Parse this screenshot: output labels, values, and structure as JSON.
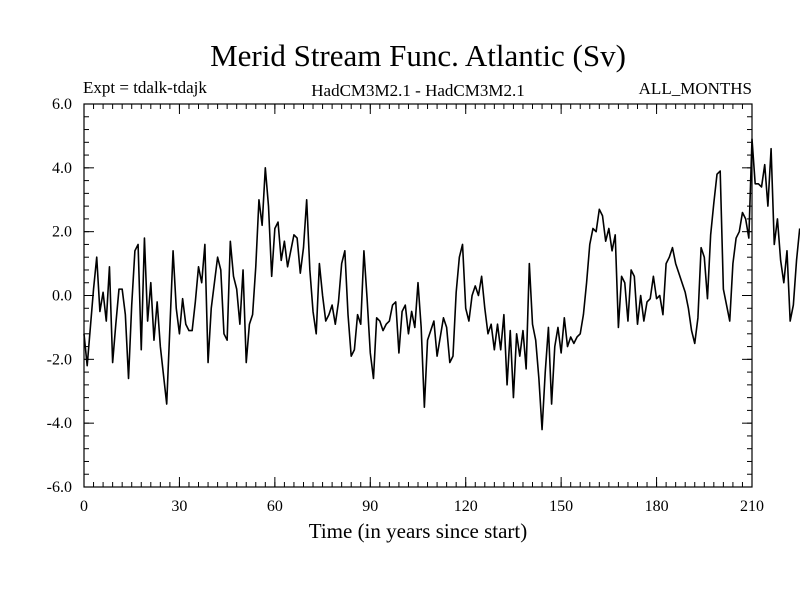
{
  "chart_data": {
    "type": "line",
    "title": "Merid Stream Func. Atlantic (Sv)",
    "subtitle_left": "Expt = tdalk-tdajk",
    "subtitle_center": "HadCM3M2.1 - HadCM3M2.1",
    "subtitle_right": "ALL_MONTHS",
    "xlabel": "Time (in years since start)",
    "ylabel": "",
    "xlim": [
      0,
      210
    ],
    "ylim": [
      -6.0,
      6.0
    ],
    "x_ticks": [
      0,
      30,
      60,
      90,
      120,
      150,
      180,
      210
    ],
    "y_ticks": [
      6.0,
      4.0,
      2.0,
      0.0,
      -2.0,
      -4.0,
      -6.0
    ],
    "x_tick_labels": [
      "0",
      "30",
      "60",
      "90",
      "120",
      "150",
      "180",
      "210"
    ],
    "y_tick_labels": [
      "6.0",
      "4.0",
      "2.0",
      "0.0",
      "-2.0",
      "-4.0",
      "-6.0"
    ],
    "x_minor_step": 3,
    "y_minor_step": 0.4,
    "series": [
      {
        "name": "Merid Stream Func. Atlantic",
        "x_start": 0,
        "x_step": 1,
        "values": [
          -1.2,
          -2.2,
          -1.0,
          0.2,
          1.2,
          -0.5,
          0.1,
          -0.8,
          0.9,
          -2.1,
          -0.9,
          0.2,
          0.2,
          -0.6,
          -2.6,
          -0.3,
          1.4,
          1.6,
          -1.7,
          1.8,
          -0.8,
          0.4,
          -1.4,
          -0.2,
          -1.6,
          -2.5,
          -3.4,
          -1.0,
          1.4,
          -0.4,
          -1.2,
          -0.1,
          -0.9,
          -1.1,
          -1.1,
          -0.2,
          0.9,
          0.4,
          1.6,
          -2.1,
          -0.4,
          0.4,
          1.2,
          0.8,
          -1.2,
          -1.4,
          1.7,
          0.6,
          0.2,
          -0.9,
          0.8,
          -2.1,
          -0.9,
          -0.6,
          0.9,
          3.0,
          2.2,
          4.0,
          2.8,
          0.6,
          2.1,
          2.3,
          1.1,
          1.7,
          0.9,
          1.4,
          1.9,
          1.8,
          0.7,
          1.5,
          3.0,
          0.8,
          -0.5,
          -1.2,
          1.0,
          0.0,
          -0.8,
          -0.6,
          -0.3,
          -0.9,
          -0.2,
          1.0,
          1.4,
          -0.6,
          -1.9,
          -1.7,
          -0.6,
          -0.9,
          1.4,
          -0.1,
          -1.8,
          -2.6,
          -0.7,
          -0.8,
          -1.1,
          -0.9,
          -0.8,
          -0.3,
          -0.2,
          -1.8,
          -0.5,
          -0.3,
          -1.2,
          -0.5,
          -1.0,
          0.4,
          -1.0,
          -3.5,
          -1.4,
          -1.1,
          -0.8,
          -1.9,
          -1.3,
          -0.7,
          -1.0,
          -2.1,
          -1.9,
          0.1,
          1.2,
          1.6,
          -0.4,
          -0.8,
          0.0,
          0.3,
          0.0,
          0.6,
          -0.4,
          -1.2,
          -0.9,
          -1.7,
          -0.9,
          -1.7,
          -0.6,
          -2.8,
          -1.1,
          -3.2,
          -1.2,
          -1.9,
          -1.1,
          -2.3,
          1.0,
          -0.9,
          -1.4,
          -2.6,
          -4.2,
          -2.4,
          -1.0,
          -3.4,
          -1.6,
          -1.0,
          -1.8,
          -0.7,
          -1.6,
          -1.3,
          -1.5,
          -1.3,
          -1.2,
          -0.6,
          0.4,
          1.6,
          2.1,
          2.0,
          2.7,
          2.5,
          1.7,
          2.1,
          1.4,
          1.9,
          -1.0,
          0.6,
          0.4,
          -0.8,
          0.8,
          0.6,
          -0.9,
          0.0,
          -0.8,
          -0.2,
          -0.1,
          0.6,
          -0.1,
          0.0,
          -0.6,
          1.0,
          1.2,
          1.5,
          1.0,
          0.7,
          0.4,
          0.1,
          -0.4,
          -1.1,
          -1.5,
          -0.7,
          1.5,
          1.2,
          -0.1,
          1.9,
          2.9,
          3.8,
          3.9,
          0.2,
          -0.3,
          -0.8,
          1.0,
          1.8,
          2.0,
          2.6,
          2.4,
          1.8,
          4.9,
          3.5,
          3.5,
          3.4,
          4.1,
          2.8,
          4.6,
          1.6,
          2.4,
          1.1,
          0.4,
          1.4,
          -0.8,
          -0.3,
          1.1,
          2.1
        ]
      }
    ]
  }
}
